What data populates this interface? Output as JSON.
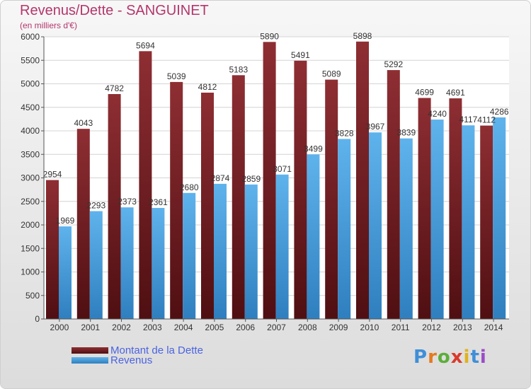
{
  "header": {
    "title": "Revenus/Dette - SANGUINET",
    "subtitle": "(en milliers d'€)"
  },
  "colors": {
    "debt": "#7a1f24",
    "revenue": "#4aa3e4",
    "title": "#b3366b",
    "legend_text": "#4b63e0"
  },
  "chart_data": {
    "type": "bar",
    "title": "Revenus/Dette - SANGUINET",
    "subtitle": "(en milliers d'€)",
    "categories": [
      "2000",
      "2001",
      "2002",
      "2003",
      "2004",
      "2005",
      "2006",
      "2007",
      "2008",
      "2009",
      "2010",
      "2011",
      "2012",
      "2013",
      "2014"
    ],
    "series": [
      {
        "name": "Montant de la Dette",
        "values": [
          2954,
          4043,
          4782,
          5694,
          5039,
          4812,
          5183,
          5890,
          5491,
          5089,
          5898,
          5292,
          4699,
          4691,
          4112
        ]
      },
      {
        "name": "Revenus",
        "values": [
          1969,
          2293,
          2373,
          2361,
          2680,
          2874,
          2859,
          3071,
          3499,
          3828,
          3967,
          3839,
          4240,
          4117,
          4286
        ]
      }
    ],
    "ylim": [
      0,
      6000
    ],
    "yticks": [
      0,
      500,
      1000,
      1500,
      2000,
      2500,
      3000,
      3500,
      4000,
      4500,
      5000,
      5500,
      6000
    ],
    "grid": true,
    "legend_position": "bottom-left"
  },
  "logo": {
    "text": "Proxiti"
  }
}
